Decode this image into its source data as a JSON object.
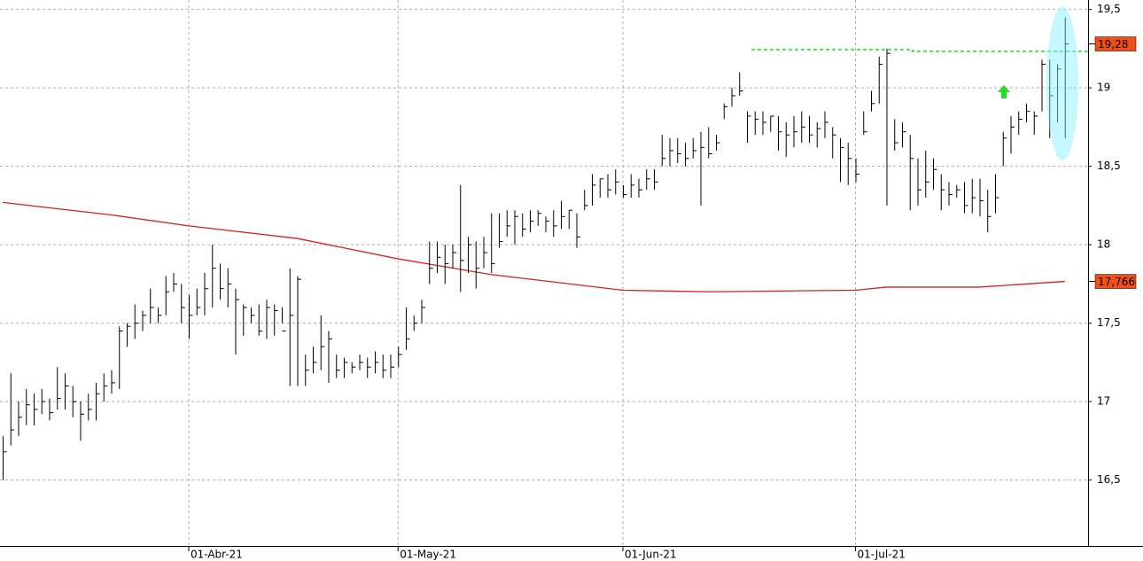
{
  "chart_data": {
    "type": "hlc",
    "bar_color": "#000000",
    "categories": [
      null,
      null,
      null,
      null,
      null,
      null,
      null,
      null,
      null,
      null,
      null,
      null,
      null,
      null,
      null,
      null,
      null,
      null,
      null,
      null,
      null,
      null,
      null,
      null,
      "01-Abr-21",
      null,
      null,
      null,
      null,
      null,
      null,
      null,
      null,
      null,
      null,
      null,
      null,
      null,
      null,
      null,
      null,
      null,
      null,
      null,
      null,
      null,
      null,
      null,
      null,
      null,
      null,
      "01-May-21",
      null,
      null,
      null,
      null,
      null,
      null,
      null,
      null,
      null,
      null,
      null,
      null,
      null,
      null,
      null,
      null,
      null,
      null,
      null,
      null,
      null,
      null,
      null,
      null,
      null,
      null,
      null,
      null,
      "01-Jun-21",
      null,
      null,
      null,
      null,
      null,
      null,
      null,
      null,
      null,
      null,
      null,
      null,
      null,
      null,
      null,
      null,
      null,
      null,
      null,
      null,
      null,
      null,
      null,
      null,
      null,
      null,
      null,
      null,
      null,
      "01-Jul-21",
      null,
      null,
      null,
      null,
      null,
      null,
      null,
      null,
      null,
      null,
      null,
      null,
      null,
      null,
      null,
      null,
      null,
      null,
      null,
      null,
      null,
      null,
      null,
      null,
      null,
      null,
      null
    ],
    "high": [
      16.78,
      17.18,
      17.0,
      17.08,
      17.05,
      17.08,
      17.02,
      17.22,
      17.18,
      17.1,
      17.0,
      17.05,
      17.12,
      17.18,
      17.2,
      17.48,
      17.5,
      17.62,
      17.58,
      17.72,
      17.6,
      17.8,
      17.82,
      17.75,
      17.68,
      17.72,
      17.82,
      18.0,
      17.88,
      17.85,
      17.72,
      17.62,
      17.6,
      17.62,
      17.65,
      17.62,
      17.6,
      17.85,
      17.8,
      17.3,
      17.35,
      17.55,
      17.45,
      17.3,
      17.28,
      17.25,
      17.3,
      17.28,
      17.32,
      17.3,
      17.3,
      17.35,
      17.6,
      17.55,
      17.65,
      18.02,
      18.02,
      18.0,
      18.0,
      18.38,
      18.05,
      18.02,
      18.05,
      18.2,
      18.2,
      18.22,
      18.22,
      18.2,
      18.22,
      18.22,
      18.18,
      18.22,
      18.28,
      18.22,
      18.2,
      18.35,
      18.45,
      18.42,
      18.45,
      18.48,
      18.38,
      18.45,
      18.42,
      18.48,
      18.48,
      18.7,
      18.68,
      18.68,
      18.65,
      18.68,
      18.72,
      18.75,
      18.7,
      18.9,
      19.0,
      19.1,
      18.85,
      18.85,
      18.85,
      18.82,
      18.82,
      18.78,
      18.82,
      18.85,
      18.82,
      18.78,
      18.85,
      18.75,
      18.68,
      18.65,
      18.55,
      18.85,
      18.98,
      19.2,
      19.25,
      18.8,
      18.78,
      18.7,
      18.55,
      18.6,
      18.55,
      18.45,
      18.4,
      18.38,
      18.4,
      18.42,
      18.42,
      18.35,
      18.45,
      18.72,
      18.82,
      18.85,
      18.9,
      18.85,
      19.18,
      19.18,
      19.15,
      19.45
    ],
    "low": [
      16.5,
      16.72,
      16.78,
      16.85,
      16.85,
      16.92,
      16.88,
      16.95,
      16.95,
      16.9,
      16.75,
      16.88,
      16.88,
      17.0,
      17.05,
      17.08,
      17.35,
      17.4,
      17.45,
      17.5,
      17.5,
      17.55,
      17.7,
      17.5,
      17.4,
      17.55,
      17.55,
      17.6,
      17.65,
      17.6,
      17.3,
      17.42,
      17.5,
      17.42,
      17.4,
      17.42,
      17.5,
      17.1,
      17.1,
      17.1,
      17.18,
      17.2,
      17.12,
      17.15,
      17.15,
      17.18,
      17.2,
      17.15,
      17.18,
      17.15,
      17.15,
      17.22,
      17.33,
      17.45,
      17.5,
      17.75,
      17.82,
      17.75,
      17.85,
      17.7,
      17.82,
      17.72,
      17.85,
      17.82,
      17.98,
      18.05,
      18.0,
      18.05,
      18.08,
      18.12,
      18.08,
      18.05,
      18.1,
      18.1,
      17.98,
      18.22,
      18.25,
      18.3,
      18.3,
      18.32,
      18.3,
      18.3,
      18.3,
      18.35,
      18.35,
      18.5,
      18.5,
      18.52,
      18.5,
      18.55,
      18.25,
      18.55,
      18.6,
      18.8,
      18.88,
      18.95,
      18.65,
      18.7,
      18.7,
      18.72,
      18.6,
      18.56,
      18.62,
      18.65,
      18.65,
      18.62,
      18.68,
      18.55,
      18.4,
      18.38,
      18.4,
      18.7,
      18.85,
      18.9,
      18.25,
      18.6,
      18.62,
      18.22,
      18.25,
      18.3,
      18.35,
      18.22,
      18.25,
      18.3,
      18.2,
      18.2,
      18.18,
      18.08,
      18.2,
      18.5,
      18.58,
      18.7,
      18.78,
      18.7,
      18.85,
      18.68,
      18.78,
      18.68
    ],
    "close": [
      16.68,
      16.82,
      16.9,
      16.98,
      16.95,
      17.0,
      16.93,
      17.02,
      17.1,
      17.0,
      16.92,
      16.95,
      17.05,
      17.1,
      17.12,
      17.45,
      17.48,
      17.5,
      17.55,
      17.6,
      17.55,
      17.7,
      17.75,
      17.6,
      17.55,
      17.6,
      17.72,
      17.85,
      17.72,
      17.75,
      17.65,
      17.6,
      17.55,
      17.45,
      17.6,
      17.58,
      17.45,
      17.55,
      17.78,
      17.2,
      17.25,
      17.35,
      17.4,
      17.2,
      17.25,
      17.22,
      17.25,
      17.22,
      17.25,
      17.2,
      17.22,
      17.3,
      17.4,
      17.5,
      17.6,
      17.85,
      17.92,
      17.88,
      17.95,
      17.9,
      18.0,
      17.85,
      17.95,
      17.88,
      18.02,
      18.12,
      18.18,
      18.1,
      18.15,
      18.2,
      18.15,
      18.12,
      18.18,
      18.22,
      18.05,
      18.25,
      18.38,
      18.42,
      18.35,
      18.4,
      18.32,
      18.38,
      18.35,
      18.42,
      18.4,
      18.55,
      18.6,
      18.58,
      18.55,
      18.6,
      18.62,
      18.58,
      18.65,
      18.88,
      18.95,
      18.98,
      18.82,
      18.8,
      18.78,
      18.82,
      18.72,
      18.7,
      18.72,
      18.75,
      18.7,
      18.74,
      18.78,
      18.7,
      18.62,
      18.55,
      18.45,
      18.72,
      18.9,
      19.15,
      19.22,
      18.65,
      18.72,
      18.55,
      18.35,
      18.4,
      18.48,
      18.35,
      18.32,
      18.35,
      18.25,
      18.3,
      18.28,
      18.18,
      18.3,
      18.68,
      18.75,
      18.8,
      18.85,
      18.82,
      19.15,
      18.95,
      19.12,
      19.28
    ],
    "moving_average": {
      "color": "#d42020",
      "x": [
        0,
        14,
        24,
        38,
        51,
        63,
        80,
        91,
        110,
        114,
        126,
        137
      ],
      "values": [
        18.27,
        18.19,
        18.12,
        18.04,
        17.91,
        17.81,
        17.71,
        17.7,
        17.71,
        17.73,
        17.73,
        17.766
      ]
    },
    "last_labels": [
      {
        "value": 19.28,
        "label": "19,28"
      },
      {
        "value": 17.766,
        "label": "17,766"
      }
    ],
    "label_color": "#f04e1a",
    "ylim": [
      16.08,
      19.56
    ],
    "yticks": [
      {
        "value": 16.5,
        "label": "16,5"
      },
      17,
      {
        "value": 17.5,
        "label": "17,5"
      },
      18,
      {
        "value": 18.5,
        "label": "18,5"
      },
      19,
      {
        "value": 19.5,
        "label": "19,5"
      }
    ],
    "grid": true
  }
}
